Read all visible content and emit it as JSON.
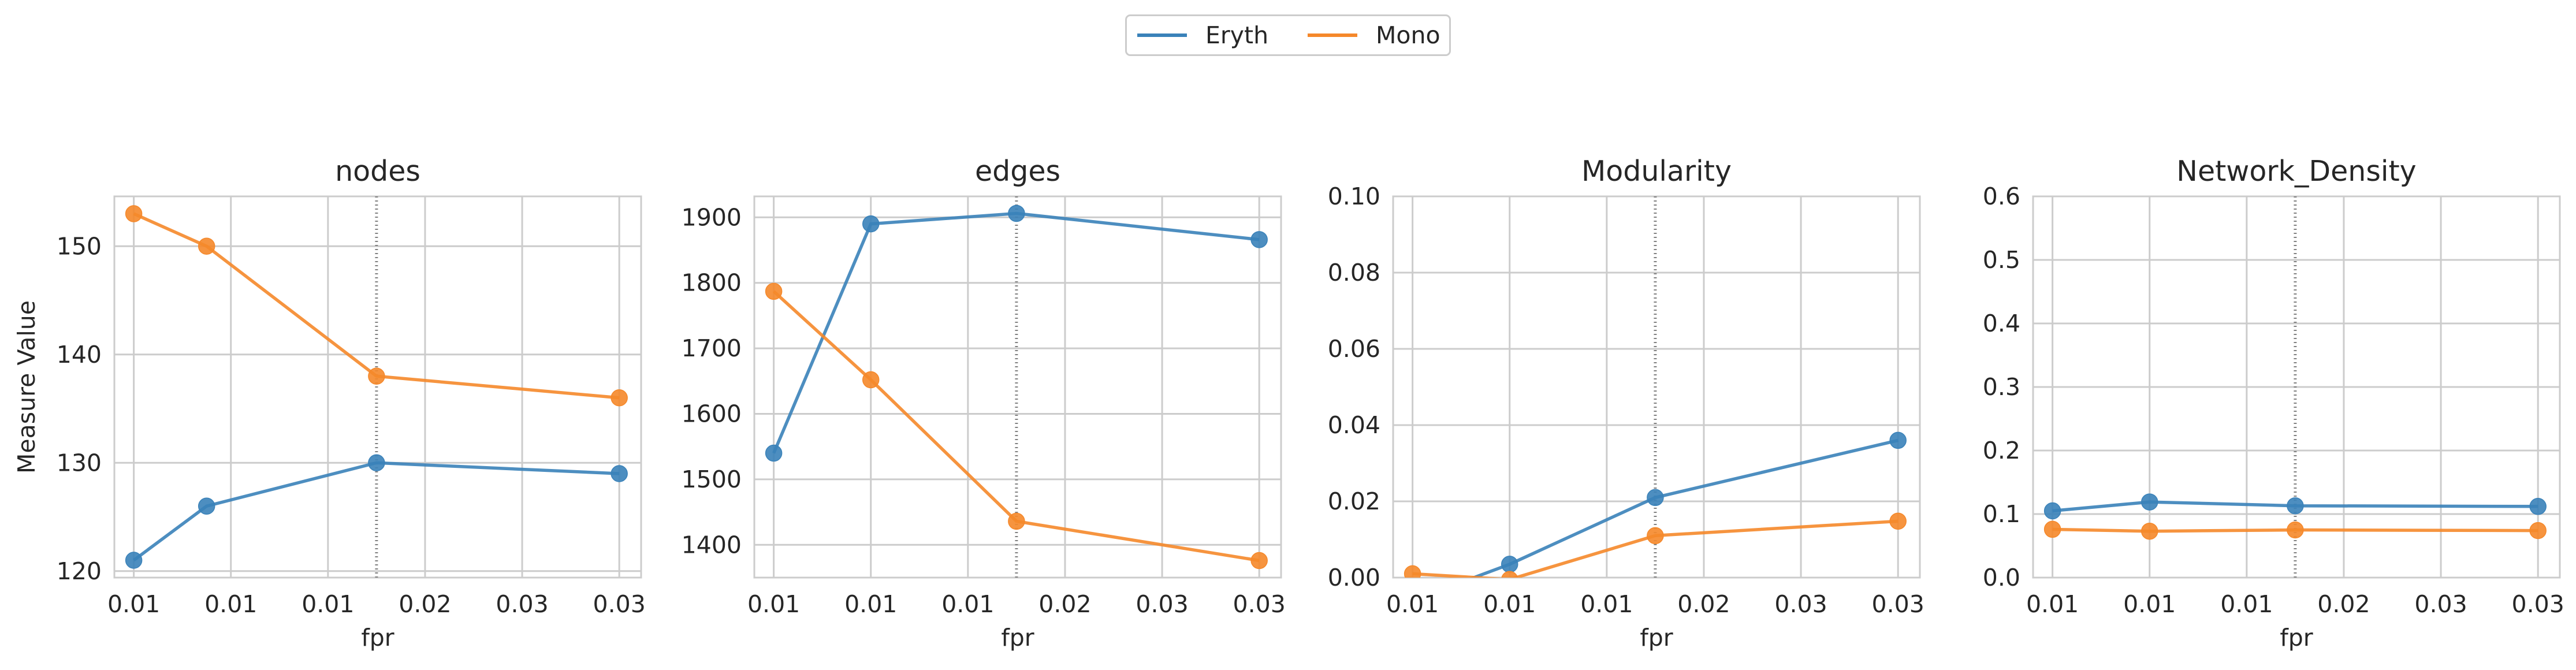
{
  "legend": {
    "items": [
      {
        "label": "Eryth",
        "color": "#3a82b9"
      },
      {
        "label": "Mono",
        "color": "#f5882a"
      }
    ]
  },
  "shared": {
    "ylabel": "Measure Value",
    "xlabel": "fpr",
    "x_tick_labels": [
      "0.01",
      "0.01",
      "0.01",
      "0.02",
      "0.03",
      "0.03"
    ]
  },
  "chart_data": [
    {
      "type": "line",
      "title": "nodes",
      "xlabel": "fpr",
      "ylabel": "Measure Value",
      "x": [
        0.01,
        0.013,
        0.02,
        0.03
      ],
      "xlim": [
        0.0092,
        0.0309
      ],
      "x_ticks": [
        0.01,
        0.014,
        0.018,
        0.022,
        0.026,
        0.03
      ],
      "ylim": [
        119.4,
        154.6
      ],
      "y_ticks": [
        120,
        130,
        140,
        150
      ],
      "vline_x": 0.02,
      "grid": true,
      "series": [
        {
          "name": "Eryth",
          "values": [
            121,
            126,
            130,
            129
          ]
        },
        {
          "name": "Mono",
          "values": [
            153,
            150,
            138,
            136
          ]
        }
      ]
    },
    {
      "type": "line",
      "title": "edges",
      "xlabel": "fpr",
      "ylabel": "",
      "x": [
        0.01,
        0.014,
        0.02,
        0.03
      ],
      "xlim": [
        0.0092,
        0.0309
      ],
      "x_ticks": [
        0.01,
        0.014,
        0.018,
        0.022,
        0.026,
        0.03
      ],
      "ylim": [
        1350,
        1932
      ],
      "y_ticks": [
        1400,
        1500,
        1600,
        1700,
        1800,
        1900
      ],
      "vline_x": 0.02,
      "grid": true,
      "series": [
        {
          "name": "Eryth",
          "values": [
            1540,
            1890,
            1906,
            1866
          ]
        },
        {
          "name": "Mono",
          "values": [
            1787,
            1652,
            1436,
            1376
          ]
        }
      ]
    },
    {
      "type": "line",
      "title": "Modularity",
      "xlabel": "fpr",
      "ylabel": "",
      "x": [
        0.01,
        0.014,
        0.02,
        0.03
      ],
      "xlim": [
        0.0092,
        0.0309
      ],
      "x_ticks": [
        0.01,
        0.014,
        0.018,
        0.022,
        0.026,
        0.03
      ],
      "ylim": [
        0,
        0.1
      ],
      "y_ticks": [
        0.0,
        0.02,
        0.04,
        0.06,
        0.08,
        0.1
      ],
      "vline_x": 0.02,
      "grid": true,
      "series": [
        {
          "name": "Eryth",
          "values": [
            -0.006,
            0.0035,
            0.021,
            0.036
          ]
        },
        {
          "name": "Mono",
          "values": [
            0.001,
            -0.0005,
            0.011,
            0.0148
          ]
        }
      ]
    },
    {
      "type": "line",
      "title": "Network_Density",
      "xlabel": "fpr",
      "ylabel": "",
      "x": [
        0.01,
        0.014,
        0.02,
        0.03
      ],
      "xlim": [
        0.0092,
        0.0309
      ],
      "x_ticks": [
        0.01,
        0.014,
        0.018,
        0.022,
        0.026,
        0.03
      ],
      "ylim": [
        0,
        0.6
      ],
      "y_ticks": [
        0.0,
        0.1,
        0.2,
        0.3,
        0.4,
        0.5,
        0.6
      ],
      "vline_x": 0.02,
      "grid": true,
      "series": [
        {
          "name": "Eryth",
          "values": [
            0.105,
            0.119,
            0.113,
            0.112
          ]
        },
        {
          "name": "Mono",
          "values": [
            0.076,
            0.073,
            0.075,
            0.074
          ]
        }
      ]
    }
  ]
}
